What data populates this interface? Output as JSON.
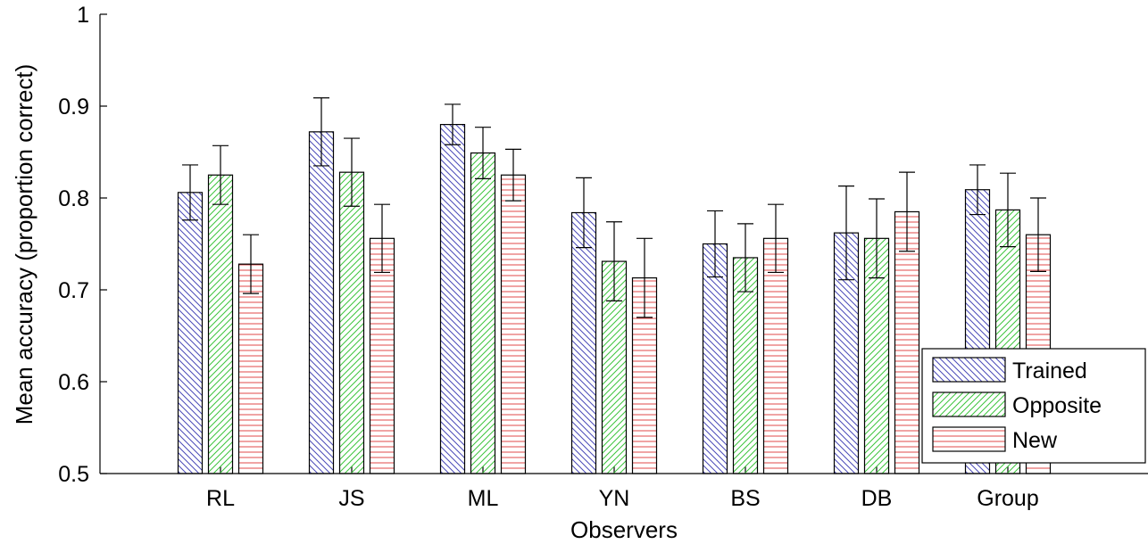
{
  "chart_data": {
    "type": "bar",
    "title": "",
    "xlabel": "Observers",
    "ylabel": "Mean accuracy (proportion correct)",
    "ylim": [
      0.5,
      1.0
    ],
    "yticks": [
      0.5,
      0.6,
      0.7,
      0.8,
      0.9,
      1.0
    ],
    "ytick_labels": [
      "0.5",
      "0.6",
      "0.7",
      "0.8",
      "0.9",
      "1"
    ],
    "categories": [
      "RL",
      "JS",
      "ML",
      "YN",
      "BS",
      "DB",
      "Group"
    ],
    "series": [
      {
        "name": "Trained",
        "values": [
          0.806,
          0.872,
          0.88,
          0.784,
          0.75,
          0.762,
          0.809
        ],
        "error": [
          0.03,
          0.037,
          0.022,
          0.038,
          0.036,
          0.051,
          0.027
        ],
        "color": "#4a4ab8",
        "pattern": "diagonal-down"
      },
      {
        "name": "Opposite",
        "values": [
          0.825,
          0.828,
          0.849,
          0.731,
          0.735,
          0.756,
          0.787
        ],
        "error": [
          0.032,
          0.037,
          0.028,
          0.043,
          0.037,
          0.043,
          0.04
        ],
        "color": "#3cc43c",
        "pattern": "diagonal-up"
      },
      {
        "name": "New",
        "values": [
          0.728,
          0.756,
          0.825,
          0.713,
          0.756,
          0.785,
          0.76
        ],
        "error": [
          0.032,
          0.037,
          0.028,
          0.043,
          0.037,
          0.043,
          0.04
        ],
        "color": "#e04848",
        "pattern": "horizontal"
      }
    ],
    "legend_position": "bottom-right",
    "grid": false
  }
}
